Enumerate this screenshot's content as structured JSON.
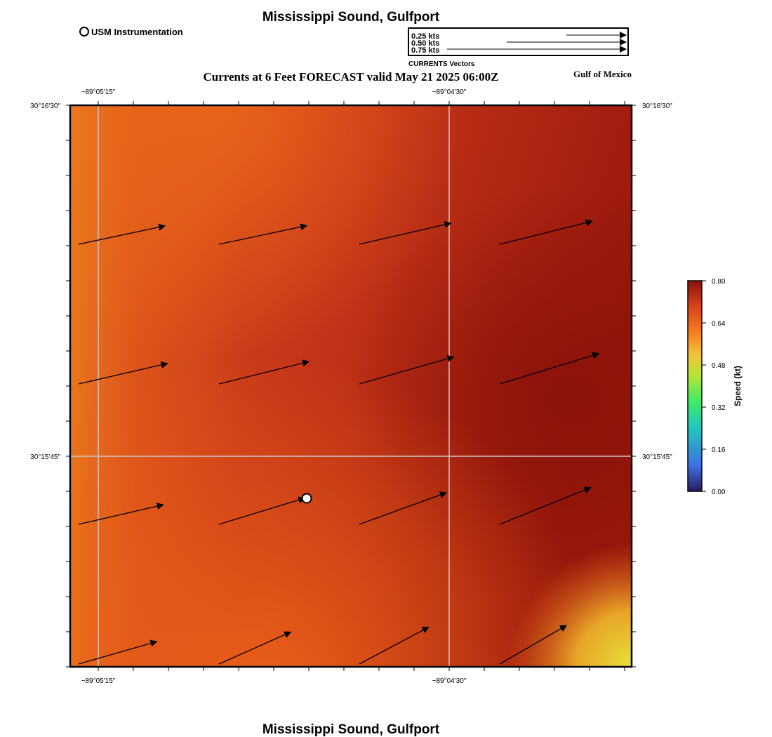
{
  "header": {
    "title_top": "Mississippi Sound, Gulfport",
    "subtitle": "Currents at 6 Feet FORECAST valid May 21 2025 06:00Z",
    "region": "Gulf of Mexico",
    "title_bottom": "Mississippi Sound, Gulfport"
  },
  "legend": {
    "station_label": "USM Instrumentation",
    "vector_title": "CURRENTS Vectors",
    "vector_scale": [
      {
        "label": "0.25 kts",
        "speed": 0.25
      },
      {
        "label": "0.50 kts",
        "speed": 0.5
      },
      {
        "label": "0.75 kts",
        "speed": 0.75
      }
    ]
  },
  "map": {
    "lon_labels": [
      "−89°05'15\"",
      "−89°04'30\""
    ],
    "lat_labels": [
      "30°16'30\"",
      "30°15'45\""
    ]
  },
  "colorbar": {
    "label": "Speed (kt)",
    "ticks": [
      "0.80",
      "0.64",
      "0.48",
      "0.32",
      "0.16",
      "0.00"
    ],
    "min": 0.0,
    "max": 0.8,
    "colors": [
      "#2b1a5e",
      "#3e6fe0",
      "#1fc7c0",
      "#3bea6a",
      "#b7e436",
      "#f4c23a",
      "#f47a1f",
      "#d6421a",
      "#8a120c"
    ]
  },
  "station": {
    "name": "USM Instrumentation"
  },
  "current_vectors": [
    {
      "row": 1,
      "col": 1,
      "speed_kt": 0.63,
      "dir_deg": 78
    },
    {
      "row": 1,
      "col": 2,
      "speed_kt": 0.64,
      "dir_deg": 78
    },
    {
      "row": 1,
      "col": 3,
      "speed_kt": 0.67,
      "dir_deg": 77
    },
    {
      "row": 1,
      "col": 4,
      "speed_kt": 0.68,
      "dir_deg": 76
    },
    {
      "row": 2,
      "col": 1,
      "speed_kt": 0.65,
      "dir_deg": 77
    },
    {
      "row": 2,
      "col": 2,
      "speed_kt": 0.66,
      "dir_deg": 76
    },
    {
      "row": 2,
      "col": 3,
      "speed_kt": 0.7,
      "dir_deg": 74
    },
    {
      "row": 2,
      "col": 4,
      "speed_kt": 0.74,
      "dir_deg": 73
    },
    {
      "row": 3,
      "col": 1,
      "speed_kt": 0.62,
      "dir_deg": 77
    },
    {
      "row": 3,
      "col": 2,
      "speed_kt": 0.64,
      "dir_deg": 73
    },
    {
      "row": 3,
      "col": 3,
      "speed_kt": 0.66,
      "dir_deg": 70
    },
    {
      "row": 3,
      "col": 4,
      "speed_kt": 0.7,
      "dir_deg": 68
    },
    {
      "row": 4,
      "col": 1,
      "speed_kt": 0.58,
      "dir_deg": 74
    },
    {
      "row": 4,
      "col": 2,
      "speed_kt": 0.56,
      "dir_deg": 66
    },
    {
      "row": 4,
      "col": 3,
      "speed_kt": 0.56,
      "dir_deg": 62
    },
    {
      "row": 4,
      "col": 4,
      "speed_kt": 0.55,
      "dir_deg": 60
    }
  ]
}
